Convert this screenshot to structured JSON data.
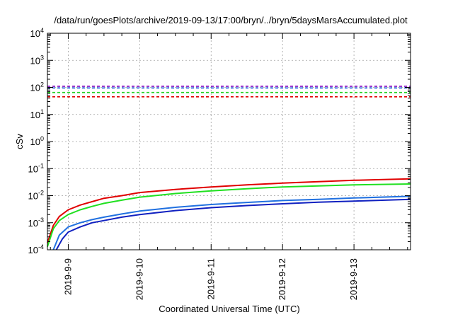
{
  "chart_data": {
    "type": "line",
    "title": "/data/run/goesPlots/archive/2019-09-13/17:00/bryn/../bryn/5daysMarsAccumulated.plot",
    "xlabel": "Coordinated Universal Time (UTC)",
    "ylabel": "cSv",
    "x_scale": "time",
    "y_scale": "log",
    "xlim": [
      "2019-09-08T17:00",
      "2019-09-13T19:00"
    ],
    "ylim": [
      0.0001,
      10000
    ],
    "grid": true,
    "x_tick_labels": [
      "2019-9-9",
      "2019-9-10",
      "2019-9-11",
      "2019-9-12",
      "2019-9-13"
    ],
    "y_tick_labels": [
      {
        "base": "10",
        "exp": "-4"
      },
      {
        "base": "10",
        "exp": "-3"
      },
      {
        "base": "10",
        "exp": "-2"
      },
      {
        "base": "10",
        "exp": "-1"
      },
      {
        "base": "10",
        "exp": "0"
      },
      {
        "base": "10",
        "exp": "1"
      },
      {
        "base": "10",
        "exp": "2"
      },
      {
        "base": "10",
        "exp": "3"
      },
      {
        "base": "10",
        "exp": "4"
      }
    ],
    "thresholds": [
      {
        "value": 110,
        "color": "#8000c0"
      },
      {
        "value": 95,
        "color": "#2060e0"
      },
      {
        "value": 65,
        "color": "#20d020"
      },
      {
        "value": 45,
        "color": "#e00000"
      }
    ],
    "series": [
      {
        "color": "#e00000",
        "points": [
          [
            "2019-09-08T17:00",
            0.00018
          ],
          [
            "2019-09-08T19:00",
            0.0008
          ],
          [
            "2019-09-08T21:00",
            0.0017
          ],
          [
            "2019-09-09T00:00",
            0.003
          ],
          [
            "2019-09-09T04:00",
            0.0045
          ],
          [
            "2019-09-09T08:00",
            0.006
          ],
          [
            "2019-09-09T12:00",
            0.008
          ],
          [
            "2019-09-09T18:00",
            0.01
          ],
          [
            "2019-09-10T00:00",
            0.013
          ],
          [
            "2019-09-10T12:00",
            0.017
          ],
          [
            "2019-09-11T00:00",
            0.021
          ],
          [
            "2019-09-11T12:00",
            0.025
          ],
          [
            "2019-09-12T00:00",
            0.029
          ],
          [
            "2019-09-12T12:00",
            0.033
          ],
          [
            "2019-09-13T00:00",
            0.037
          ],
          [
            "2019-09-13T19:00",
            0.042
          ]
        ]
      },
      {
        "color": "#20e020",
        "points": [
          [
            "2019-09-08T17:00",
            0.00013
          ],
          [
            "2019-09-08T19:00",
            0.0006
          ],
          [
            "2019-09-08T21:00",
            0.0012
          ],
          [
            "2019-09-09T00:00",
            0.002
          ],
          [
            "2019-09-09T04:00",
            0.003
          ],
          [
            "2019-09-09T08:00",
            0.004
          ],
          [
            "2019-09-09T12:00",
            0.0052
          ],
          [
            "2019-09-09T18:00",
            0.0068
          ],
          [
            "2019-09-10T00:00",
            0.0088
          ],
          [
            "2019-09-10T12:00",
            0.012
          ],
          [
            "2019-09-11T00:00",
            0.015
          ],
          [
            "2019-09-11T12:00",
            0.018
          ],
          [
            "2019-09-12T00:00",
            0.021
          ],
          [
            "2019-09-12T12:00",
            0.023
          ],
          [
            "2019-09-13T00:00",
            0.025
          ],
          [
            "2019-09-13T19:00",
            0.027
          ]
        ]
      },
      {
        "color": "#2070e0",
        "points": [
          [
            "2019-09-08T19:00",
            0.0001
          ],
          [
            "2019-09-08T21:00",
            0.00035
          ],
          [
            "2019-09-09T00:00",
            0.0007
          ],
          [
            "2019-09-09T04:00",
            0.001
          ],
          [
            "2019-09-09T08:00",
            0.0013
          ],
          [
            "2019-09-09T12:00",
            0.0016
          ],
          [
            "2019-09-09T18:00",
            0.0021
          ],
          [
            "2019-09-10T00:00",
            0.0027
          ],
          [
            "2019-09-10T12:00",
            0.0037
          ],
          [
            "2019-09-11T00:00",
            0.0047
          ],
          [
            "2019-09-11T12:00",
            0.0056
          ],
          [
            "2019-09-12T00:00",
            0.0066
          ],
          [
            "2019-09-12T12:00",
            0.0073
          ],
          [
            "2019-09-13T00:00",
            0.0082
          ],
          [
            "2019-09-13T19:00",
            0.0095
          ]
        ]
      },
      {
        "color": "#1020c0",
        "points": [
          [
            "2019-09-08T20:00",
            0.0001
          ],
          [
            "2019-09-08T22:00",
            0.00025
          ],
          [
            "2019-09-09T00:00",
            0.00045
          ],
          [
            "2019-09-09T04:00",
            0.0007
          ],
          [
            "2019-09-09T08:00",
            0.001
          ],
          [
            "2019-09-09T12:00",
            0.0012
          ],
          [
            "2019-09-09T18:00",
            0.0016
          ],
          [
            "2019-09-10T00:00",
            0.002
          ],
          [
            "2019-09-10T12:00",
            0.0028
          ],
          [
            "2019-09-11T00:00",
            0.0036
          ],
          [
            "2019-09-11T12:00",
            0.0043
          ],
          [
            "2019-09-12T00:00",
            0.005
          ],
          [
            "2019-09-12T12:00",
            0.0057
          ],
          [
            "2019-09-13T00:00",
            0.0063
          ],
          [
            "2019-09-13T19:00",
            0.0073
          ]
        ]
      }
    ]
  }
}
